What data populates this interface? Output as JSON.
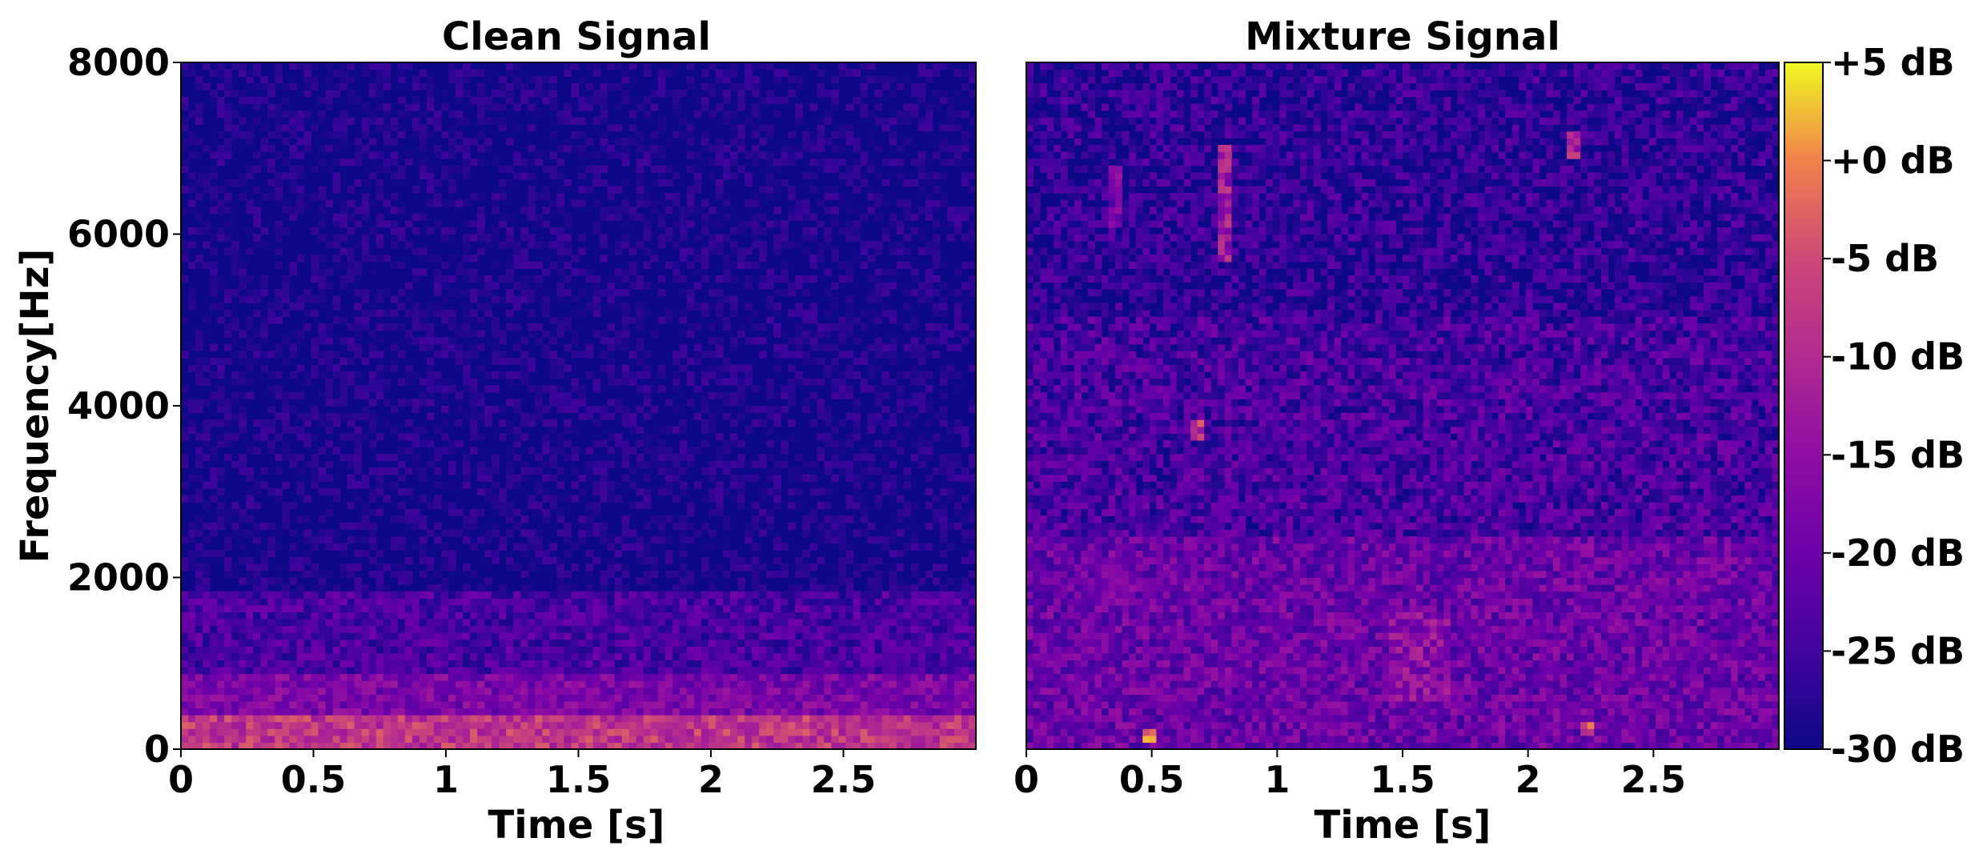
{
  "chart_data": [
    {
      "type": "heatmap",
      "title": "Clean Signal",
      "xlabel": "Time [s]",
      "ylabel": "Frequency[Hz]",
      "xlim": [
        0,
        3.0
      ],
      "ylim": [
        0,
        8000
      ],
      "x_ticks": [
        0,
        0.5,
        1,
        1.5,
        2,
        2.5
      ],
      "x_tick_labels": [
        "0",
        "0.5",
        "1",
        "1.5",
        "2",
        "2.5"
      ],
      "y_ticks": [
        0,
        2000,
        4000,
        6000,
        8000
      ],
      "y_tick_labels": [
        "0",
        "2000",
        "4000",
        "6000",
        "8000"
      ],
      "energy_regions": [
        {
          "t_range": [
            0,
            3.0
          ],
          "f_range": [
            0,
            400
          ],
          "level_db": -8
        },
        {
          "t_range": [
            0,
            3.0
          ],
          "f_range": [
            400,
            900
          ],
          "level_db": -18
        },
        {
          "t_range": [
            0,
            3.0
          ],
          "f_range": [
            900,
            1800
          ],
          "level_db": -24
        },
        {
          "t_range": [
            0,
            3.0
          ],
          "f_range": [
            1800,
            8000
          ],
          "level_db": -30
        }
      ]
    },
    {
      "type": "heatmap",
      "title": "Mixture Signal",
      "xlabel": "Time [s]",
      "xlim": [
        0,
        3.0
      ],
      "ylim": [
        0,
        8000
      ],
      "x_ticks": [
        0,
        0.5,
        1,
        1.5,
        2,
        2.5
      ],
      "x_tick_labels": [
        "0",
        "0.5",
        "1",
        "1.5",
        "2",
        "2.5"
      ],
      "colorbar": {
        "colormap": "plasma",
        "range_db": [
          -30,
          5
        ],
        "ticks": [
          5,
          0,
          -5,
          -10,
          -15,
          -20,
          -25,
          -30
        ],
        "tick_labels": [
          "+5 dB",
          "+0 dB",
          "-5 dB",
          "-10 dB",
          "-15 dB",
          "-20 dB",
          "-25 dB",
          "-30 dB"
        ]
      },
      "energy_regions": [
        {
          "t_range": [
            0,
            3.0
          ],
          "f_range": [
            0,
            2500
          ],
          "level_db": -20
        },
        {
          "t_range": [
            0,
            3.0
          ],
          "f_range": [
            2500,
            5000
          ],
          "level_db": -24
        },
        {
          "t_range": [
            0,
            3.0
          ],
          "f_range": [
            5000,
            8000
          ],
          "level_db": -27
        },
        {
          "t_range": [
            0.45,
            0.52
          ],
          "f_range": [
            100,
            250
          ],
          "level_db": -2
        },
        {
          "t_range": [
            2.2,
            2.27
          ],
          "f_range": [
            200,
            350
          ],
          "level_db": -5
        },
        {
          "t_range": [
            0.77,
            0.83
          ],
          "f_range": [
            5700,
            7000
          ],
          "level_db": -13
        },
        {
          "t_range": [
            0.33,
            0.38
          ],
          "f_range": [
            6100,
            6800
          ],
          "level_db": -18
        },
        {
          "t_range": [
            2.15,
            2.2
          ],
          "f_range": [
            6900,
            7200
          ],
          "level_db": -12
        },
        {
          "t_range": [
            0.65,
            0.7
          ],
          "f_range": [
            3600,
            3800
          ],
          "level_db": -8
        },
        {
          "t_range": [
            1.45,
            1.7
          ],
          "f_range": [
            600,
            1600
          ],
          "level_db": -16
        }
      ]
    }
  ]
}
